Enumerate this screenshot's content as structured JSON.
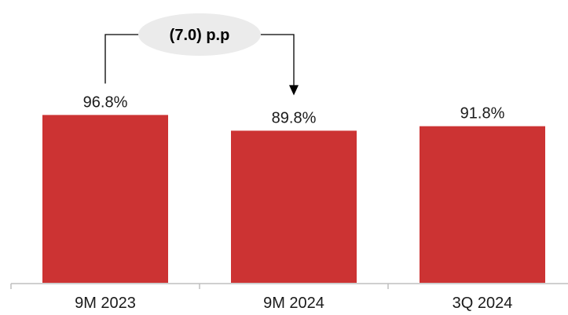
{
  "chart_data": {
    "type": "bar",
    "categories": [
      "9M 2023",
      "9M 2024",
      "3Q 2024"
    ],
    "values": [
      96.8,
      89.8,
      91.8
    ],
    "value_labels": [
      "96.8%",
      "89.8%",
      "91.8%"
    ],
    "bar_color": "#cc3333",
    "grid": false,
    "legend": "none",
    "annotation": {
      "text": "(7.0) p.p",
      "from_category": "9M 2023",
      "to_category": "9M 2024"
    }
  }
}
